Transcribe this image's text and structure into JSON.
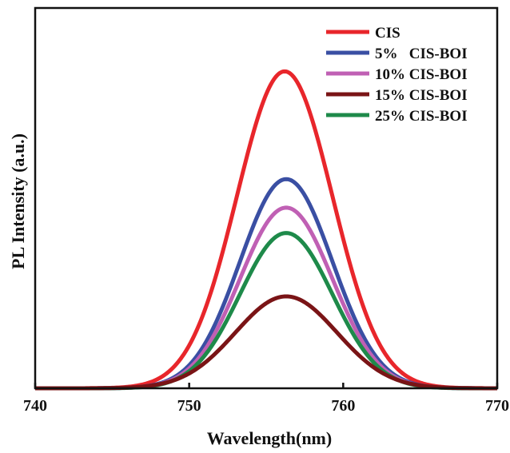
{
  "chart_data": {
    "type": "line",
    "title": "",
    "xlabel": "Wavelength(nm)",
    "ylabel": "PL Intensity (a.u.)",
    "xlim": [
      740,
      770
    ],
    "ylim": [
      0,
      1.2
    ],
    "xticks": [
      740,
      750,
      760,
      770
    ],
    "xtick_labels": [
      "740",
      "750",
      "760",
      "770"
    ],
    "yticks_shown": false,
    "grid": false,
    "legend_position": "top-right",
    "series": [
      {
        "name": "CIS",
        "color": "#e8262b",
        "peak_x": 756.2,
        "peak_y": 1.0,
        "width": 3.1
      },
      {
        "name": "5%   CIS-BOI",
        "color": "#3a4fa3",
        "peak_x": 756.3,
        "peak_y": 0.66,
        "width": 3.0
      },
      {
        "name": "10% CIS-BOI",
        "color": "#c060b4",
        "peak_x": 756.3,
        "peak_y": 0.57,
        "width": 3.0
      },
      {
        "name": "15% CIS-BOI",
        "color": "#7a1416",
        "peak_x": 756.3,
        "peak_y": 0.29,
        "width": 3.3
      },
      {
        "name": "25% CIS-BOI",
        "color": "#1e8a4a",
        "peak_x": 756.3,
        "peak_y": 0.49,
        "width": 3.0
      }
    ],
    "legend_order": [
      0,
      1,
      2,
      3,
      4
    ],
    "draw_order": [
      0,
      1,
      2,
      4,
      3
    ]
  }
}
